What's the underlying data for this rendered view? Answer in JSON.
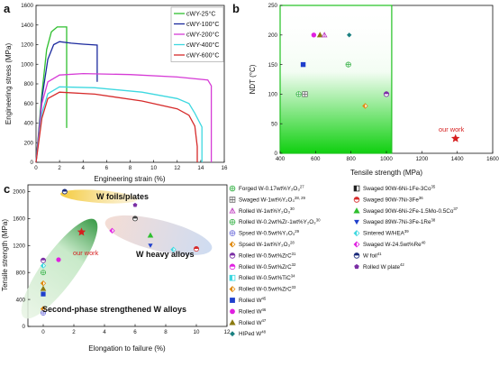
{
  "panels": {
    "a": "a",
    "b": "b",
    "c": "c"
  },
  "chart_data": [
    {
      "panel": "a",
      "type": "line",
      "xlabel": "Engineering strain (%)",
      "ylabel": "Engineering stress (MPa)",
      "xlim": [
        0,
        16
      ],
      "ylim": [
        0,
        1600
      ],
      "xticks": [
        "0",
        "2",
        "4",
        "6",
        "8",
        "10",
        "12",
        "14",
        "16"
      ],
      "yticks": [
        "0",
        "200",
        "400",
        "600",
        "800",
        "1000",
        "1200",
        "1400",
        "1600"
      ],
      "legend_position": "top-right",
      "series": [
        {
          "name": "cWY-25°C",
          "color": "#2fbf2f",
          "points": [
            [
              0,
              0
            ],
            [
              0.5,
              700
            ],
            [
              0.9,
              1150
            ],
            [
              1.3,
              1330
            ],
            [
              1.8,
              1380
            ],
            [
              2.6,
              1380
            ],
            [
              2.6,
              350
            ]
          ]
        },
        {
          "name": "cWY-100°C",
          "color": "#1c2a9e",
          "points": [
            [
              0,
              0
            ],
            [
              0.5,
              650
            ],
            [
              1,
              1050
            ],
            [
              1.5,
              1200
            ],
            [
              2,
              1230
            ],
            [
              3,
              1215
            ],
            [
              4,
              1205
            ],
            [
              5.2,
              1195
            ],
            [
              5.2,
              820
            ]
          ]
        },
        {
          "name": "cWY-200°C",
          "color": "#d63bd6",
          "points": [
            [
              0,
              0
            ],
            [
              0.5,
              600
            ],
            [
              1,
              820
            ],
            [
              2,
              890
            ],
            [
              4,
              905
            ],
            [
              8,
              895
            ],
            [
              12,
              870
            ],
            [
              14.6,
              840
            ],
            [
              14.9,
              780
            ],
            [
              14.9,
              0
            ]
          ]
        },
        {
          "name": "cWY-400°C",
          "color": "#3ed8e0",
          "points": [
            [
              0,
              0
            ],
            [
              0.5,
              500
            ],
            [
              1,
              700
            ],
            [
              2,
              770
            ],
            [
              5,
              760
            ],
            [
              9,
              715
            ],
            [
              12,
              650
            ],
            [
              13,
              600
            ],
            [
              13.5,
              500
            ],
            [
              14.1,
              360
            ],
            [
              14.1,
              0
            ]
          ]
        },
        {
          "name": "cWY-600°C",
          "color": "#d62a2a",
          "points": [
            [
              0,
              0
            ],
            [
              0.5,
              450
            ],
            [
              1,
              650
            ],
            [
              2,
              715
            ],
            [
              5,
              695
            ],
            [
              9,
              625
            ],
            [
              12,
              545
            ],
            [
              13,
              480
            ],
            [
              13.5,
              370
            ],
            [
              13.7,
              160
            ],
            [
              13.7,
              0
            ]
          ]
        }
      ]
    },
    {
      "panel": "b",
      "type": "scatter",
      "xlabel": "Tensile strength (MPa)",
      "ylabel": "NDT (°C)",
      "xlim": [
        400,
        1600
      ],
      "ylim": [
        0,
        250
      ],
      "xticks": [
        "400",
        "600",
        "800",
        "1000",
        "1200",
        "1400",
        "1600"
      ],
      "yticks": [
        "0",
        "50",
        "100",
        "150",
        "200",
        "250"
      ],
      "points": [
        {
          "x": 505,
          "y": 100,
          "shape": "circle-plus",
          "color": "#3cb44b"
        },
        {
          "x": 540,
          "y": 100,
          "shape": "square-cross",
          "color": "#666666"
        },
        {
          "x": 530,
          "y": 150,
          "shape": "square",
          "color": "#1f3fcc"
        },
        {
          "x": 590,
          "y": 200,
          "shape": "circle",
          "color": "#e020e0"
        },
        {
          "x": 625,
          "y": 200,
          "shape": "triangle",
          "color": "#8b7a10"
        },
        {
          "x": 650,
          "y": 200,
          "shape": "triangle-open",
          "color": "#c040c0"
        },
        {
          "x": 790,
          "y": 200,
          "shape": "diamond",
          "color": "#1a8080"
        },
        {
          "x": 785,
          "y": 150,
          "shape": "circle-plus",
          "color": "#3cb44b"
        },
        {
          "x": 1000,
          "y": 100,
          "shape": "circle-half",
          "color": "#7b2fa5"
        },
        {
          "x": 880,
          "y": 80,
          "shape": "diamond-half",
          "color": "#e08a10"
        },
        {
          "x": 1390,
          "y": 25,
          "shape": "star",
          "color": "#d61f1f"
        }
      ],
      "annotation": "our work"
    },
    {
      "panel": "c",
      "type": "scatter",
      "xlabel": "Elongation to failure (%)",
      "ylabel": "Tensile strength (MPa)",
      "xlim": [
        -1,
        12
      ],
      "ylim": [
        0,
        2100
      ],
      "xticks": [
        "0",
        "2",
        "4",
        "6",
        "8",
        "10",
        "12"
      ],
      "yticks": [
        "0",
        "400",
        "800",
        "1200",
        "1600",
        "2000"
      ],
      "regions": [
        "W foils/plates",
        "W heavy alloys",
        "Second-phase strengthened W alloys"
      ],
      "annotation": "our work",
      "points": [
        {
          "x": 0,
          "y": 980,
          "shape": "circle-half",
          "color": "#7b2fa5"
        },
        {
          "x": 0,
          "y": 900,
          "shape": "diamond-half",
          "color": "#3ed8e0"
        },
        {
          "x": 0,
          "y": 800,
          "shape": "circle-plus",
          "color": "#3cb44b"
        },
        {
          "x": 0,
          "y": 640,
          "shape": "diamond-half",
          "color": "#e08a10"
        },
        {
          "x": 0,
          "y": 560,
          "shape": "triangle",
          "color": "#8b7a10"
        },
        {
          "x": 0,
          "y": 480,
          "shape": "square",
          "color": "#1f3fcc"
        },
        {
          "x": 0,
          "y": 260,
          "shape": "diamond-half",
          "color": "#e08a10"
        },
        {
          "x": 0,
          "y": 200,
          "shape": "circle-plus",
          "color": "#7777dd"
        },
        {
          "x": 1,
          "y": 990,
          "shape": "circle",
          "color": "#e020e0"
        },
        {
          "x": 1.4,
          "y": 2000,
          "shape": "circle-half",
          "color": "#1a2a7a"
        },
        {
          "x": 6,
          "y": 1800,
          "shape": "pentagon",
          "color": "#7b2fa5"
        },
        {
          "x": 6,
          "y": 1600,
          "shape": "circle-half",
          "color": "#444444"
        },
        {
          "x": 7,
          "y": 1350,
          "shape": "triangle",
          "color": "#2fbf2f"
        },
        {
          "x": 4.5,
          "y": 1420,
          "shape": "diamond-half",
          "color": "#e020e0"
        },
        {
          "x": 7,
          "y": 1200,
          "shape": "triangle-down",
          "color": "#1f3fcc"
        },
        {
          "x": 8.5,
          "y": 1140,
          "shape": "diamond-half",
          "color": "#3ed8e0"
        },
        {
          "x": 10,
          "y": 1150,
          "shape": "circle-half",
          "color": "#d62a2a"
        },
        {
          "x": 2.5,
          "y": 1400,
          "shape": "star",
          "color": "#d61f1f"
        }
      ]
    }
  ],
  "legend_c": {
    "col1": [
      {
        "label": "Forged W-0.17wt%Y₂O₃",
        "ref": "27",
        "shape": "circle-plus",
        "color": "#3cb44b"
      },
      {
        "label": "Swaged W-1wt%Y₂O₃",
        "ref": "28, 29",
        "shape": "square-cross",
        "color": "#666666"
      },
      {
        "label": "Rolled W-1wt%Y₂O₃",
        "ref": "30",
        "shape": "triangle-open",
        "color": "#c040c0"
      },
      {
        "label": "Rolled W-0.2wt%Zr-1wt%Y₂O₃",
        "ref": "30",
        "shape": "circle-plus",
        "color": "#3cb44b"
      },
      {
        "label": "Spsed W-0.5wt%Y₂O₃",
        "ref": "29",
        "shape": "circle-plus",
        "color": "#7777dd"
      },
      {
        "label": "Spsed W-1wt%Y₂O₃",
        "ref": "28",
        "shape": "diamond-half",
        "color": "#e08a10"
      },
      {
        "label": "Rolled W-0.5wt%ZrC",
        "ref": "31",
        "shape": "circle-half",
        "color": "#7b2fa5"
      },
      {
        "label": "Rolled W-0.5wt%ZrC",
        "ref": "32",
        "shape": "circle-half",
        "color": "#e020e0"
      },
      {
        "label": "Rolled W-0.5wt%TiC",
        "ref": "34",
        "shape": "square-half",
        "color": "#3ed8e0"
      },
      {
        "label": "Rolled W-0.5wt%ZrC",
        "ref": "33",
        "shape": "diamond-half",
        "color": "#e08a10"
      },
      {
        "label": "Rolled W",
        "ref": "45",
        "shape": "square",
        "color": "#1f3fcc"
      },
      {
        "label": "Rolled W",
        "ref": "46",
        "shape": "circle",
        "color": "#e020e0"
      },
      {
        "label": "Rolled W",
        "ref": "47",
        "shape": "triangle",
        "color": "#8b7a10"
      },
      {
        "label": "HIPed W",
        "ref": "48",
        "shape": "diamond",
        "color": "#1a8080"
      }
    ],
    "col2": [
      {
        "label": "Swaged 90W-6Ni-1Fe-3Co",
        "ref": "35",
        "shape": "square-half",
        "color": "#222222"
      },
      {
        "label": "Swaged 90W-7Ni-3Fe",
        "ref": "36",
        "shape": "circle-half",
        "color": "#d62a2a"
      },
      {
        "label": "Swaged 90W-6Ni-2Fe-1.5Mo-0.5Co",
        "ref": "37",
        "shape": "triangle",
        "color": "#2fbf2f"
      },
      {
        "label": "Swaged 89W-7Ni-3Fe-1Re",
        "ref": "38",
        "shape": "triangle-down",
        "color": "#1f3fcc"
      },
      {
        "label": "Sintered W/HEA",
        "ref": "39",
        "shape": "diamond-half",
        "color": "#3ed8e0"
      },
      {
        "label": "Swaged W-24.5wt%Re",
        "ref": "40",
        "shape": "diamond-half",
        "color": "#e020e0"
      },
      {
        "label": "W foil",
        "ref": "41",
        "shape": "circle-half",
        "color": "#1a2a7a"
      },
      {
        "label": "Rolled W plate",
        "ref": "42",
        "shape": "pentagon",
        "color": "#7b2fa5"
      }
    ]
  }
}
